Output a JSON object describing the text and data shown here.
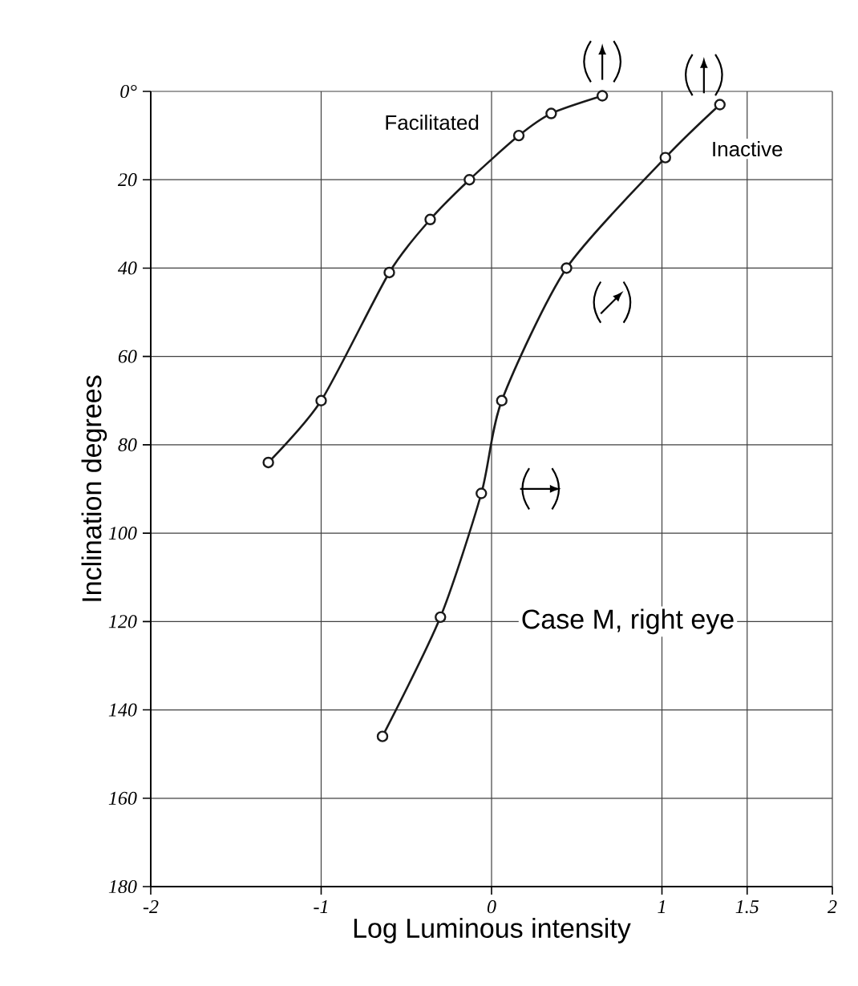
{
  "chart_data": {
    "type": "line",
    "xlabel": "Log Luminous intensity",
    "ylabel": "Inclination degrees",
    "xlim": [
      -2,
      2
    ],
    "ylim": [
      180,
      0
    ],
    "xticks": [
      -2,
      -1,
      0,
      1,
      1.5,
      2
    ],
    "yticks": [
      {
        "value": 0,
        "label": "0°"
      },
      20,
      40,
      60,
      80,
      100,
      120,
      140,
      160,
      180
    ],
    "grid": true,
    "marker": "circle",
    "line_style": "solid",
    "series": [
      {
        "color": "#1a1a1a",
        "x": [
          -1.31,
          -1.0,
          -0.6,
          -0.36,
          -0.13,
          0.16,
          0.35,
          0.65
        ],
        "values": [
          84,
          70,
          41,
          29,
          20,
          10,
          5,
          1
        ]
      },
      {
        "color": "#1a1a1a",
        "x": [
          -0.64,
          -0.3,
          -0.06,
          0.06,
          0.44,
          1.02,
          1.34
        ],
        "values": [
          146,
          119,
          91,
          70,
          40,
          15,
          3
        ]
      }
    ],
    "annotations": [
      "Facilitated",
      "Inactive",
      "Case M, right eye"
    ]
  }
}
